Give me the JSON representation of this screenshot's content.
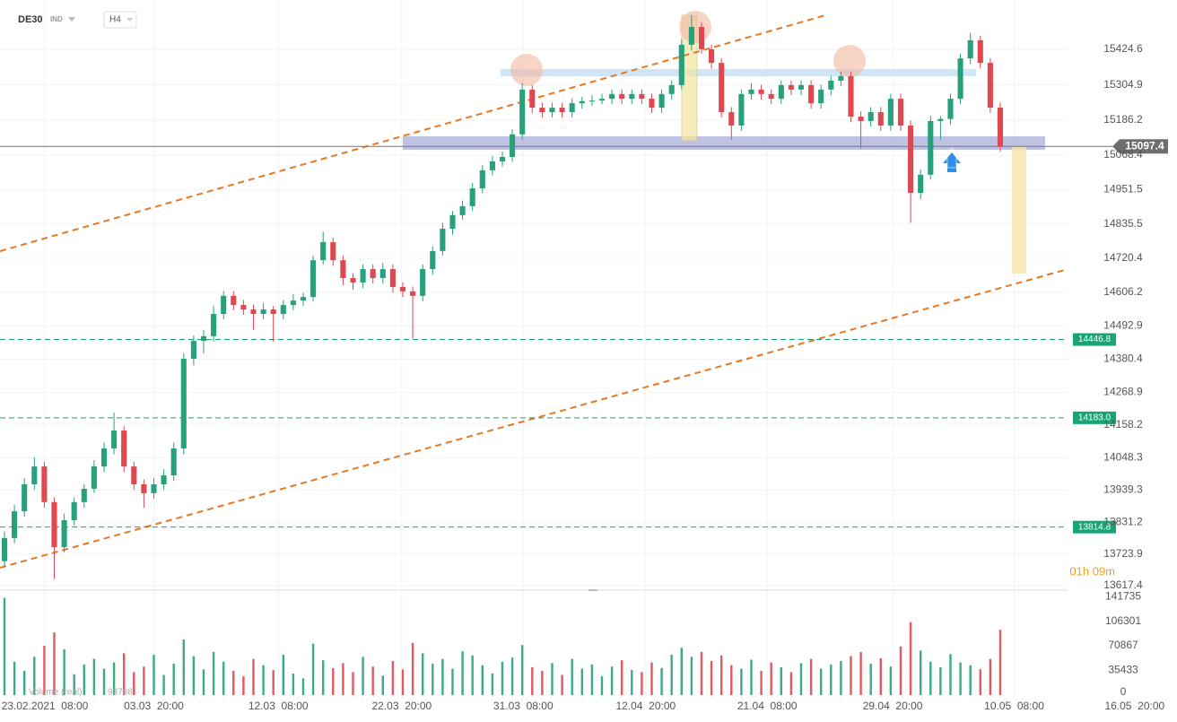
{
  "chart_data": {
    "type": "candlestick",
    "symbol": "DE30",
    "market": "IND",
    "timeframe": "H4",
    "up_color": "#26a17b",
    "down_color": "#e0474f",
    "candles": [
      [
        13700,
        13800,
        13680,
        13778
      ],
      [
        13778,
        13890,
        13760,
        13868
      ],
      [
        13868,
        13980,
        13850,
        13959
      ],
      [
        13959,
        14050,
        13940,
        14019
      ],
      [
        14019,
        14035,
        13880,
        13899
      ],
      [
        13899,
        13915,
        13640,
        13747
      ],
      [
        13747,
        13860,
        13730,
        13838
      ],
      [
        13838,
        13915,
        13820,
        13899
      ],
      [
        13899,
        13960,
        13880,
        13944
      ],
      [
        13944,
        14040,
        13930,
        14019
      ],
      [
        14019,
        14100,
        14000,
        14080
      ],
      [
        14080,
        14200,
        14060,
        14140
      ],
      [
        14140,
        14155,
        14000,
        14019
      ],
      [
        14019,
        14035,
        13940,
        13959
      ],
      [
        13959,
        13975,
        13880,
        13929
      ],
      [
        13929,
        13980,
        13910,
        13959
      ],
      [
        13959,
        14010,
        13940,
        13989
      ],
      [
        13989,
        14100,
        13970,
        14080
      ],
      [
        14080,
        14400,
        14060,
        14382
      ],
      [
        14382,
        14460,
        14360,
        14442
      ],
      [
        14442,
        14480,
        14400,
        14458
      ],
      [
        14458,
        14560,
        14440,
        14533
      ],
      [
        14533,
        14610,
        14515,
        14594
      ],
      [
        14594,
        14610,
        14545,
        14563
      ],
      [
        14563,
        14580,
        14530,
        14548
      ],
      [
        14548,
        14565,
        14480,
        14533
      ],
      [
        14533,
        14570,
        14515,
        14548
      ],
      [
        14548,
        14560,
        14440,
        14533
      ],
      [
        14533,
        14580,
        14515,
        14563
      ],
      [
        14563,
        14600,
        14545,
        14578
      ],
      [
        14578,
        14605,
        14560,
        14590
      ],
      [
        14590,
        14730,
        14575,
        14714
      ],
      [
        14714,
        14810,
        14700,
        14775
      ],
      [
        14775,
        14790,
        14695,
        14714
      ],
      [
        14714,
        14730,
        14630,
        14654
      ],
      [
        14654,
        14670,
        14615,
        14639
      ],
      [
        14639,
        14700,
        14620,
        14684
      ],
      [
        14684,
        14700,
        14635,
        14654
      ],
      [
        14654,
        14705,
        14635,
        14684
      ],
      [
        14684,
        14700,
        14605,
        14624
      ],
      [
        14624,
        14640,
        14590,
        14609
      ],
      [
        14609,
        14625,
        14450,
        14594
      ],
      [
        14594,
        14700,
        14575,
        14684
      ],
      [
        14684,
        14760,
        14665,
        14745
      ],
      [
        14745,
        14840,
        14730,
        14820
      ],
      [
        14820,
        14880,
        14800,
        14866
      ],
      [
        14866,
        14915,
        14850,
        14896
      ],
      [
        14896,
        14975,
        14880,
        14956
      ],
      [
        14956,
        15035,
        14940,
        15017
      ],
      [
        15017,
        15065,
        15000,
        15047
      ],
      [
        15047,
        15080,
        15030,
        15062
      ],
      [
        15062,
        15155,
        15045,
        15138
      ],
      [
        15138,
        15310,
        15120,
        15289
      ],
      [
        15289,
        15305,
        15210,
        15228
      ],
      [
        15228,
        15245,
        15195,
        15213
      ],
      [
        15213,
        15245,
        15195,
        15228
      ],
      [
        15228,
        15245,
        15195,
        15213
      ],
      [
        15213,
        15260,
        15195,
        15243
      ],
      [
        15243,
        15265,
        15225,
        15250
      ],
      [
        15250,
        15270,
        15235,
        15252
      ],
      [
        15252,
        15275,
        15240,
        15258
      ],
      [
        15258,
        15290,
        15240,
        15274
      ],
      [
        15274,
        15290,
        15240,
        15258
      ],
      [
        15258,
        15290,
        15240,
        15274
      ],
      [
        15274,
        15290,
        15240,
        15258
      ],
      [
        15258,
        15275,
        15210,
        15228
      ],
      [
        15228,
        15290,
        15210,
        15274
      ],
      [
        15274,
        15320,
        15255,
        15304
      ],
      [
        15304,
        15460,
        15290,
        15440
      ],
      [
        15440,
        15540,
        15420,
        15500
      ],
      [
        15500,
        15515,
        15410,
        15425
      ],
      [
        15425,
        15440,
        15360,
        15379
      ],
      [
        15379,
        15395,
        15195,
        15213
      ],
      [
        15213,
        15230,
        15120,
        15168
      ],
      [
        15168,
        15290,
        15150,
        15274
      ],
      [
        15274,
        15310,
        15255,
        15289
      ],
      [
        15289,
        15305,
        15255,
        15274
      ],
      [
        15274,
        15290,
        15240,
        15258
      ],
      [
        15258,
        15320,
        15240,
        15304
      ],
      [
        15304,
        15320,
        15270,
        15289
      ],
      [
        15289,
        15320,
        15270,
        15304
      ],
      [
        15304,
        15320,
        15225,
        15243
      ],
      [
        15243,
        15305,
        15225,
        15289
      ],
      [
        15289,
        15335,
        15270,
        15319
      ],
      [
        15319,
        15350,
        15300,
        15334
      ],
      [
        15334,
        15350,
        15180,
        15198
      ],
      [
        15198,
        15215,
        15090,
        15183
      ],
      [
        15183,
        15230,
        15165,
        15213
      ],
      [
        15213,
        15230,
        15150,
        15168
      ],
      [
        15168,
        15275,
        15150,
        15258
      ],
      [
        15258,
        15275,
        15150,
        15168
      ],
      [
        15168,
        15185,
        14840,
        14941
      ],
      [
        14941,
        15020,
        14920,
        15002
      ],
      [
        15002,
        15200,
        14985,
        15183
      ],
      [
        15183,
        15200,
        15120,
        15190
      ],
      [
        15190,
        15275,
        15170,
        15258
      ],
      [
        15258,
        15410,
        15240,
        15394
      ],
      [
        15394,
        15480,
        15375,
        15455
      ],
      [
        15455,
        15470,
        15360,
        15379
      ],
      [
        15379,
        15395,
        15210,
        15228
      ],
      [
        15228,
        15245,
        15080,
        15097.4
      ]
    ],
    "xlim": [
      -0.45,
      117.75
    ],
    "xticks": [
      {
        "value": 4.05,
        "label": "23.02.2021  08:00"
      },
      {
        "value": 15.0,
        "label": "03.03  20:00"
      },
      {
        "value": 27.5,
        "label": "12.03  08:00"
      },
      {
        "value": 39.9,
        "label": "22.03  20:00"
      },
      {
        "value": 52.1,
        "label": "31.03  08:00"
      },
      {
        "value": 64.4,
        "label": "12.04  20:00"
      },
      {
        "value": 76.6,
        "label": "21.04  08:00"
      },
      {
        "value": 89.2,
        "label": "29.04  20:00"
      },
      {
        "value": 101.4,
        "label": "10.05  08:00"
      },
      {
        "value": 113.5,
        "label": "16.05  20:00"
      }
    ],
    "ylim": [
      13602.3,
      15590.8
    ],
    "yticks": [
      15424.6,
      15304.9,
      15186.2,
      15068.4,
      14951.5,
      14835.5,
      14720.4,
      14606.2,
      14492.9,
      14380.4,
      14268.9,
      14158.2,
      14048.3,
      13939.3,
      13831.2,
      13723.9,
      13617.4
    ],
    "grid": true,
    "levels": [
      {
        "value": 14446.8,
        "label": "14446.8"
      },
      {
        "value": 14183,
        "label": "14183.0"
      },
      {
        "value": 13814.8,
        "label": "13814.8"
      }
    ],
    "level_color": "#17a673",
    "volume": {
      "name": "Volume (real)",
      "values": [
        140000,
        48000,
        35000,
        55000,
        71000,
        90000,
        66000,
        30000,
        44000,
        52000,
        38000,
        47000,
        60000,
        33000,
        41000,
        58000,
        29000,
        45000,
        80000,
        56000,
        37000,
        62000,
        48000,
        35000,
        27000,
        52000,
        43000,
        36000,
        58000,
        31000,
        24000,
        74000,
        50000,
        39000,
        46000,
        33000,
        55000,
        41000,
        28000,
        49000,
        37000,
        75000,
        60000,
        45000,
        52000,
        38000,
        63000,
        57000,
        43000,
        31000,
        48000,
        54000,
        72000,
        40000,
        35000,
        46000,
        29000,
        52000,
        38000,
        44000,
        27000,
        41000,
        50000,
        36000,
        33000,
        47000,
        39000,
        58000,
        68000,
        55000,
        62000,
        49000,
        57000,
        43000,
        38000,
        51000,
        35000,
        47000,
        40000,
        33000,
        46000,
        52000,
        38000,
        44000,
        49000,
        56000,
        62000,
        45000,
        53000,
        41000,
        70000,
        105000,
        64000,
        48000,
        40000,
        59000,
        47000,
        43000,
        37000,
        52000,
        93788
      ],
      "ylim": [
        0,
        150900
      ],
      "yticks": [
        141735,
        106301,
        70867,
        35433,
        0
      ]
    },
    "countdown": "01h 09m"
  }
}
